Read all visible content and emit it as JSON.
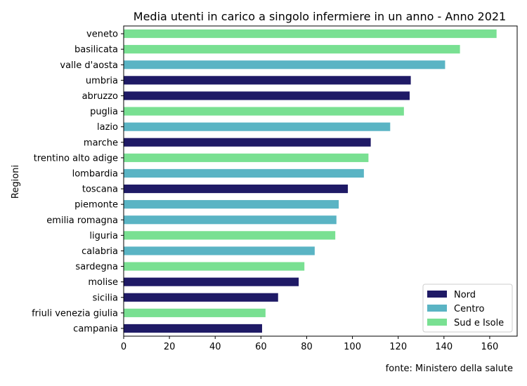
{
  "chart_data": {
    "type": "bar",
    "orientation": "horizontal",
    "title": "Media utenti in carico a singolo infermiere in un anno - Anno 2021",
    "xlabel": "",
    "ylabel": "Regioni",
    "xlim": [
      0,
      172
    ],
    "xticks": [
      0,
      20,
      40,
      60,
      80,
      100,
      120,
      140,
      160
    ],
    "grid": false,
    "legend_position": "bottom-right",
    "categories": [
      "veneto",
      "basilicata",
      "valle d'aosta",
      "umbria",
      "abruzzo",
      "puglia",
      "lazio",
      "marche",
      "trentino alto adige",
      "lombardia",
      "toscana",
      "piemonte",
      "emilia romagna",
      "liguria",
      "calabria",
      "sardegna",
      "molise",
      "sicilia",
      "friuli venezia giulia",
      "campania"
    ],
    "values": [
      163,
      147,
      140.5,
      125.5,
      125,
      122.5,
      116.5,
      108,
      107,
      105,
      98,
      94,
      93,
      92.5,
      83.5,
      79,
      76.5,
      67.5,
      62,
      60.5
    ],
    "groups": [
      "Sud e Isole",
      "Sud e Isole",
      "Centro",
      "Nord",
      "Nord",
      "Sud e Isole",
      "Centro",
      "Nord",
      "Sud e Isole",
      "Centro",
      "Nord",
      "Centro",
      "Centro",
      "Sud e Isole",
      "Centro",
      "Sud e Isole",
      "Nord",
      "Nord",
      "Sud e Isole",
      "Nord"
    ],
    "legend": [
      {
        "name": "Nord",
        "color": "#1f1a66"
      },
      {
        "name": "Centro",
        "color": "#5ab4c4"
      },
      {
        "name": "Sud e Isole",
        "color": "#79e092"
      }
    ],
    "source": "fonte: Ministero della salute"
  }
}
